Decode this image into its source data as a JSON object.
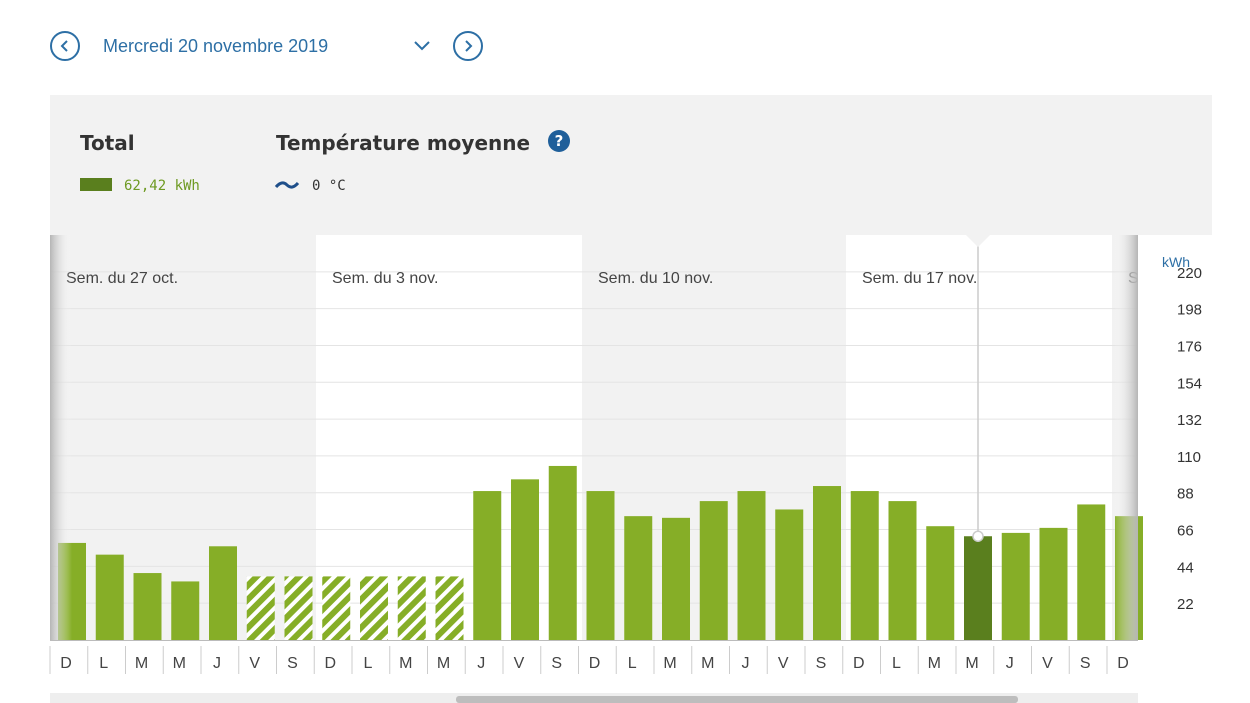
{
  "nav": {
    "date_label": "Mercredi 20 novembre 2019"
  },
  "legend": {
    "total_title": "Total",
    "total_value": "62,42 kWh",
    "temp_title": "Température moyenne",
    "temp_value": "0 °C",
    "help_icon": "question-circle-icon",
    "help_glyph": "?"
  },
  "colors": {
    "bar": "#86ae27",
    "bar_selected": "#5a7f1e",
    "estimated_stripe": "#86ae27",
    "accent": "#2d6fa5",
    "week_band": "#f2f2f2"
  },
  "chart_data": {
    "type": "bar",
    "ylabel": "kWh",
    "ylim": [
      0,
      242
    ],
    "yticks": [
      22,
      44,
      66,
      88,
      110,
      132,
      154,
      176,
      198,
      220
    ],
    "weeks": [
      "Sem. du 27 oct.",
      "Sem. du 3 nov.",
      "Sem. du 10 nov.",
      "Sem. du 17 nov.",
      "S"
    ],
    "categories": [
      "D",
      "L",
      "M",
      "M",
      "J",
      "V",
      "S",
      "D",
      "L",
      "M",
      "M",
      "J",
      "V",
      "S",
      "D",
      "L",
      "M",
      "M",
      "J",
      "V",
      "S",
      "D",
      "L",
      "M",
      "M",
      "J",
      "V",
      "S",
      "D"
    ],
    "values": [
      58,
      51,
      40,
      35,
      56,
      38,
      38,
      38,
      38,
      38,
      38,
      89,
      96,
      104,
      89,
      74,
      73,
      83,
      89,
      78,
      92,
      89,
      83,
      68,
      62,
      64,
      67,
      81,
      74
    ],
    "estimated": [
      false,
      false,
      false,
      false,
      false,
      true,
      true,
      true,
      true,
      true,
      true,
      false,
      false,
      false,
      false,
      false,
      false,
      false,
      false,
      false,
      false,
      false,
      false,
      false,
      false,
      false,
      false,
      false,
      false
    ],
    "selected_index": 24
  }
}
